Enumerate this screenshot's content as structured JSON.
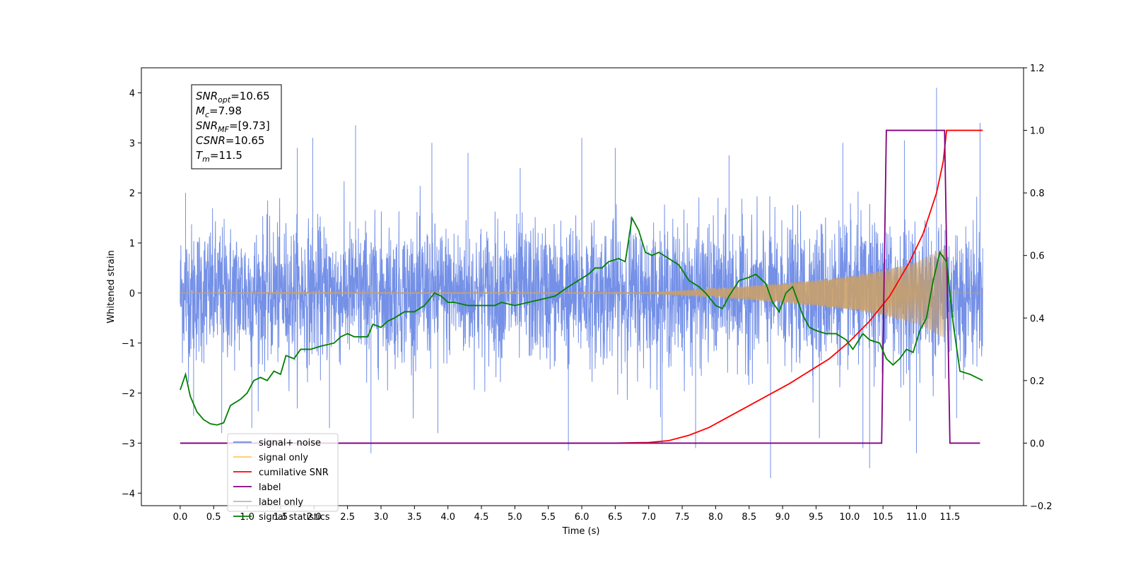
{
  "chart_data": {
    "type": "line",
    "xlabel": "Time (s)",
    "ylabel_left": "Whitened strain",
    "ylabel_right": "",
    "x_range": [
      -0.58,
      12.6
    ],
    "y_left_range": [
      -4.25,
      4.5
    ],
    "y_right_range": [
      -0.2,
      1.2
    ],
    "x_ticks": [
      "0.0",
      "0.5",
      "1.0",
      "1.5",
      "2.0",
      "2.5",
      "3.0",
      "3.5",
      "4.0",
      "4.5",
      "5.0",
      "5.5",
      "6.0",
      "6.5",
      "7.0",
      "7.5",
      "8.0",
      "8.5",
      "9.0",
      "9.5",
      "10.0",
      "10.5",
      "11.0",
      "11.5"
    ],
    "y_left_ticks": [
      "−4",
      "−3",
      "−2",
      "−1",
      "0",
      "1",
      "2",
      "3",
      "4"
    ],
    "y_right_ticks": [
      "−0.2",
      "0.0",
      "0.2",
      "0.4",
      "0.6",
      "0.8",
      "1.0",
      "1.2"
    ],
    "grid": false,
    "legend_placement": "lower-left",
    "legend": [
      {
        "label": "signal+ noise",
        "color": "#6d8ae6"
      },
      {
        "label": "signal only",
        "color": "#ffc964"
      },
      {
        "label": "cumilative SNR",
        "color": "#ff0000"
      },
      {
        "label": "label",
        "color": "#800080"
      },
      {
        "label": "label only",
        "color": "#b8b8b8"
      },
      {
        "label": "signal statistics",
        "color": "#008000"
      }
    ],
    "info_box": [
      {
        "var": "SNR",
        "sub": "opt",
        "value": "=10.65"
      },
      {
        "var": "M",
        "sub": "c",
        "value": "=7.98"
      },
      {
        "var": "SNR",
        "sub": "MF",
        "value": "=[9.73]"
      },
      {
        "var": "CSNR",
        "sub": "",
        "value": "=10.65"
      },
      {
        "var": "T",
        "sub": "m",
        "value": "=11.5"
      }
    ],
    "series": [
      {
        "name": "signal+ noise",
        "axis": "left",
        "color": "#6d8ae6",
        "description": "dense noisy strain, roughly within ±1.8 with spikes up to ±3.5 (max 4.1 near 11.3s)",
        "x_range": [
          0.0,
          11.99
        ],
        "spikes": [
          [
            0.08,
            2.0
          ],
          [
            0.2,
            -2.45
          ],
          [
            0.62,
            -2.8
          ],
          [
            1.07,
            -2.7
          ],
          [
            1.75,
            2.9
          ],
          [
            1.98,
            3.1
          ],
          [
            2.23,
            -2.7
          ],
          [
            2.62,
            3.35
          ],
          [
            2.85,
            -3.2
          ],
          [
            3.76,
            3.0
          ],
          [
            3.85,
            -2.8
          ],
          [
            4.3,
            2.8
          ],
          [
            5.08,
            2.5
          ],
          [
            5.8,
            -3.15
          ],
          [
            6.0,
            3.1
          ],
          [
            6.5,
            2.9
          ],
          [
            7.2,
            -3.0
          ],
          [
            7.7,
            -3.1
          ],
          [
            8.2,
            2.75
          ],
          [
            8.82,
            -3.7
          ],
          [
            9.55,
            -2.9
          ],
          [
            9.9,
            3.0
          ],
          [
            10.2,
            -3.1
          ],
          [
            10.3,
            -3.5
          ],
          [
            10.82,
            3.05
          ],
          [
            11.0,
            -3.2
          ],
          [
            11.3,
            4.1
          ],
          [
            11.6,
            -2.5
          ],
          [
            11.95,
            3.4
          ]
        ]
      },
      {
        "name": "signal only",
        "axis": "left",
        "color": "#ffc964",
        "description": "chirp: near zero until ~7.5s, amplitude growing to ~0.9 at 11.45s then stops",
        "envelope": [
          [
            0.0,
            0.01
          ],
          [
            7.0,
            0.02
          ],
          [
            7.5,
            0.05
          ],
          [
            8.0,
            0.1
          ],
          [
            8.5,
            0.14
          ],
          [
            9.0,
            0.2
          ],
          [
            9.5,
            0.26
          ],
          [
            10.0,
            0.34
          ],
          [
            10.5,
            0.45
          ],
          [
            11.0,
            0.62
          ],
          [
            11.2,
            0.75
          ],
          [
            11.4,
            0.9
          ],
          [
            11.45,
            0.0
          ],
          [
            12.0,
            0.0
          ]
        ]
      },
      {
        "name": "cumilative SNR",
        "axis": "right",
        "color": "#ff0000",
        "points": [
          [
            0,
            0
          ],
          [
            6.5,
            0
          ],
          [
            7.0,
            0.002
          ],
          [
            7.3,
            0.008
          ],
          [
            7.6,
            0.025
          ],
          [
            7.9,
            0.05
          ],
          [
            8.2,
            0.085
          ],
          [
            8.5,
            0.12
          ],
          [
            8.8,
            0.155
          ],
          [
            9.1,
            0.19
          ],
          [
            9.4,
            0.23
          ],
          [
            9.7,
            0.27
          ],
          [
            10.0,
            0.325
          ],
          [
            10.3,
            0.39
          ],
          [
            10.6,
            0.47
          ],
          [
            10.9,
            0.58
          ],
          [
            11.1,
            0.67
          ],
          [
            11.3,
            0.8
          ],
          [
            11.4,
            0.9
          ],
          [
            11.45,
            1.0
          ],
          [
            11.99,
            1.0
          ]
        ]
      },
      {
        "name": "label",
        "axis": "right",
        "color": "#800080",
        "points": [
          [
            0,
            0
          ],
          [
            10.48,
            0
          ],
          [
            10.55,
            1.0
          ],
          [
            11.42,
            1.0
          ],
          [
            11.5,
            0
          ],
          [
            11.95,
            0
          ]
        ]
      },
      {
        "name": "signal statistics",
        "axis": "right",
        "color": "#008000",
        "points": [
          [
            0.0,
            0.17
          ],
          [
            0.08,
            0.22
          ],
          [
            0.15,
            0.15
          ],
          [
            0.25,
            0.1
          ],
          [
            0.35,
            0.075
          ],
          [
            0.45,
            0.062
          ],
          [
            0.55,
            0.058
          ],
          [
            0.65,
            0.065
          ],
          [
            0.75,
            0.12
          ],
          [
            0.9,
            0.14
          ],
          [
            1.0,
            0.16
          ],
          [
            1.1,
            0.2
          ],
          [
            1.2,
            0.21
          ],
          [
            1.3,
            0.2
          ],
          [
            1.4,
            0.23
          ],
          [
            1.5,
            0.22
          ],
          [
            1.58,
            0.28
          ],
          [
            1.7,
            0.27
          ],
          [
            1.8,
            0.3
          ],
          [
            1.95,
            0.3
          ],
          [
            2.1,
            0.31
          ],
          [
            2.3,
            0.32
          ],
          [
            2.4,
            0.34
          ],
          [
            2.5,
            0.35
          ],
          [
            2.6,
            0.34
          ],
          [
            2.8,
            0.34
          ],
          [
            2.88,
            0.38
          ],
          [
            3.0,
            0.37
          ],
          [
            3.1,
            0.39
          ],
          [
            3.2,
            0.4
          ],
          [
            3.35,
            0.42
          ],
          [
            3.5,
            0.42
          ],
          [
            3.65,
            0.44
          ],
          [
            3.8,
            0.48
          ],
          [
            3.9,
            0.47
          ],
          [
            4.0,
            0.45
          ],
          [
            4.1,
            0.45
          ],
          [
            4.3,
            0.44
          ],
          [
            4.5,
            0.44
          ],
          [
            4.7,
            0.44
          ],
          [
            4.8,
            0.45
          ],
          [
            5.0,
            0.44
          ],
          [
            5.2,
            0.45
          ],
          [
            5.4,
            0.46
          ],
          [
            5.6,
            0.47
          ],
          [
            5.8,
            0.5
          ],
          [
            5.95,
            0.52
          ],
          [
            6.1,
            0.54
          ],
          [
            6.2,
            0.56
          ],
          [
            6.3,
            0.56
          ],
          [
            6.4,
            0.58
          ],
          [
            6.55,
            0.59
          ],
          [
            6.65,
            0.58
          ],
          [
            6.75,
            0.72
          ],
          [
            6.85,
            0.68
          ],
          [
            6.95,
            0.61
          ],
          [
            7.05,
            0.6
          ],
          [
            7.15,
            0.61
          ],
          [
            7.3,
            0.59
          ],
          [
            7.45,
            0.57
          ],
          [
            7.6,
            0.52
          ],
          [
            7.75,
            0.5
          ],
          [
            7.85,
            0.48
          ],
          [
            8.0,
            0.44
          ],
          [
            8.1,
            0.43
          ],
          [
            8.2,
            0.47
          ],
          [
            8.35,
            0.52
          ],
          [
            8.5,
            0.53
          ],
          [
            8.6,
            0.54
          ],
          [
            8.75,
            0.51
          ],
          [
            8.85,
            0.45
          ],
          [
            8.95,
            0.42
          ],
          [
            9.05,
            0.48
          ],
          [
            9.15,
            0.5
          ],
          [
            9.3,
            0.41
          ],
          [
            9.4,
            0.37
          ],
          [
            9.5,
            0.36
          ],
          [
            9.65,
            0.35
          ],
          [
            9.8,
            0.35
          ],
          [
            9.95,
            0.33
          ],
          [
            10.05,
            0.3
          ],
          [
            10.2,
            0.35
          ],
          [
            10.3,
            0.33
          ],
          [
            10.45,
            0.32
          ],
          [
            10.55,
            0.27
          ],
          [
            10.65,
            0.25
          ],
          [
            10.75,
            0.27
          ],
          [
            10.85,
            0.3
          ],
          [
            10.95,
            0.29
          ],
          [
            11.05,
            0.36
          ],
          [
            11.15,
            0.4
          ],
          [
            11.25,
            0.52
          ],
          [
            11.35,
            0.61
          ],
          [
            11.45,
            0.58
          ],
          [
            11.55,
            0.38
          ],
          [
            11.65,
            0.23
          ],
          [
            11.8,
            0.22
          ],
          [
            11.99,
            0.2
          ]
        ]
      }
    ]
  }
}
